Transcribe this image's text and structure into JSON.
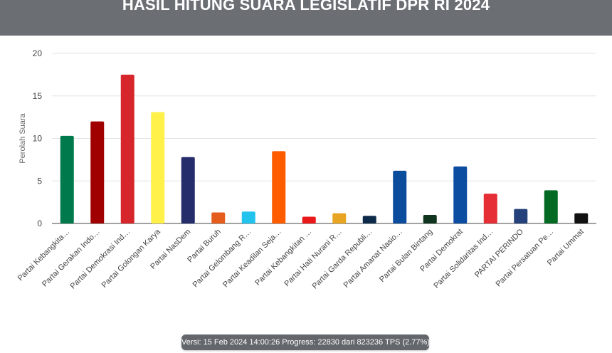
{
  "header": {
    "title": "HASIL HITUNG SUARA LEGISLATIF DPR RI 2024"
  },
  "footer": {
    "version_text": "Versi: 15 Feb 2024 14:00:26 Progress: 22830 dari 823236 TPS (2.77%)"
  },
  "chart_data": {
    "type": "bar",
    "title": "HASIL HITUNG SUARA LEGISLATIF DPR RI 2024",
    "xlabel": "",
    "ylabel": "Perolah Suara",
    "ylim": [
      0,
      20
    ],
    "yticks": [
      0,
      5,
      10,
      15,
      20
    ],
    "grid": true,
    "legend": "none",
    "categories": [
      "Partai Kebangkita…",
      "Partai Gerakan Indo…",
      "Partai Demokrasi Ind…",
      "Partai Golongan Karya",
      "Partai NasDem",
      "Partai Buruh",
      "Partai Gelombang R…",
      "Partai Keadilan Seja…",
      "Partai Kebangkitan …",
      "Partai Hati Nurani R…",
      "Partai Garda Republi…",
      "Partai Amanat Nasio…",
      "Partai Bulan Bintang",
      "Partai Demokrat",
      "Partai Solidaritas Ind…",
      "PARTAI PERINDO",
      "Partai Persatuan Pe…",
      "Partai Ummat"
    ],
    "values": [
      10.3,
      12.0,
      17.5,
      13.1,
      7.8,
      1.3,
      1.4,
      8.5,
      0.8,
      1.2,
      0.9,
      6.2,
      1.0,
      6.7,
      3.5,
      1.7,
      3.9,
      1.2
    ],
    "colors": [
      "#007a4d",
      "#a00000",
      "#d7262b",
      "#fff04a",
      "#262d6b",
      "#e55d1c",
      "#22c4ee",
      "#ff5c00",
      "#e9191b",
      "#e8a523",
      "#0e2a4a",
      "#0b4c9c",
      "#10351f",
      "#0d4da1",
      "#e52e35",
      "#24417c",
      "#036a24",
      "#111111"
    ]
  }
}
